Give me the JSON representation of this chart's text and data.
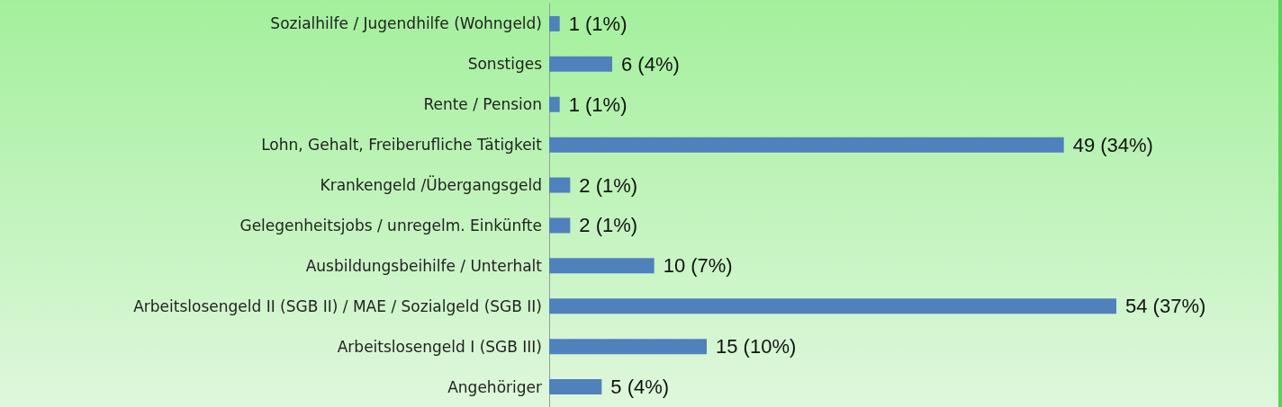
{
  "chart_data": {
    "type": "bar",
    "orientation": "horizontal",
    "categories": [
      "Sozialhilfe / Jugendhilfe (Wohngeld)",
      "Sonstiges",
      "Rente / Pension",
      "Lohn, Gehalt, Freiberufliche Tätigkeit",
      "Krankengeld /Übergangsgeld",
      "Gelegenheitsjobs / unregelm. Einkünfte",
      "Ausbildungsbeihilfe / Unterhalt",
      "Arbeitslosengeld II (SGB II) / MAE / Sozialgeld (SGB II)",
      "Arbeitslosengeld I (SGB III)",
      "Angehöriger"
    ],
    "values": [
      1,
      6,
      1,
      49,
      2,
      2,
      10,
      54,
      15,
      5
    ],
    "value_labels": [
      "1 (1%)",
      "6 (4%)",
      "1 (1%)",
      "49 (34%)",
      "2 (1%)",
      "2 (1%)",
      "10 (7%)",
      "54 (37%)",
      "15 (10%)",
      "5 (4%)"
    ],
    "color": "#4f81bd"
  }
}
